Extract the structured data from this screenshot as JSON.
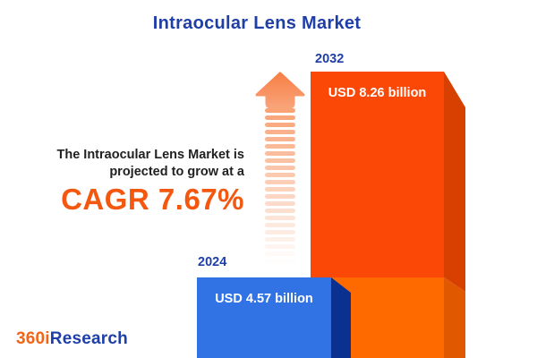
{
  "title": "Intraocular Lens Market",
  "description": {
    "line1": "The Intraocular Lens Market is",
    "line2": "projected to grow at a",
    "cagr": "CAGR 7.67%"
  },
  "logo": {
    "prefix": "360i",
    "suffix": "Research"
  },
  "chart_data": {
    "type": "bar",
    "title": "Intraocular Lens Market",
    "categories": [
      "2024",
      "2032"
    ],
    "values": [
      4.57,
      8.26
    ],
    "unit": "USD billion",
    "value_labels": [
      "USD 4.57 billion",
      "USD 8.26 billion"
    ],
    "cagr_percent": 7.67,
    "legend": "none",
    "colors": {
      "bar_2024_face": "#3173E5",
      "bar_2024_side": "#0B3190",
      "bar_2032_growth_face": "#FB4806",
      "bar_2032_growth_side": "#D74000",
      "bar_2032_base_face": "#FF6A00",
      "bar_2032_base_side": "#E05800",
      "accent_orange": "#F4570F",
      "accent_blue": "#1F3FA8",
      "arrow": "#F78B58"
    }
  }
}
